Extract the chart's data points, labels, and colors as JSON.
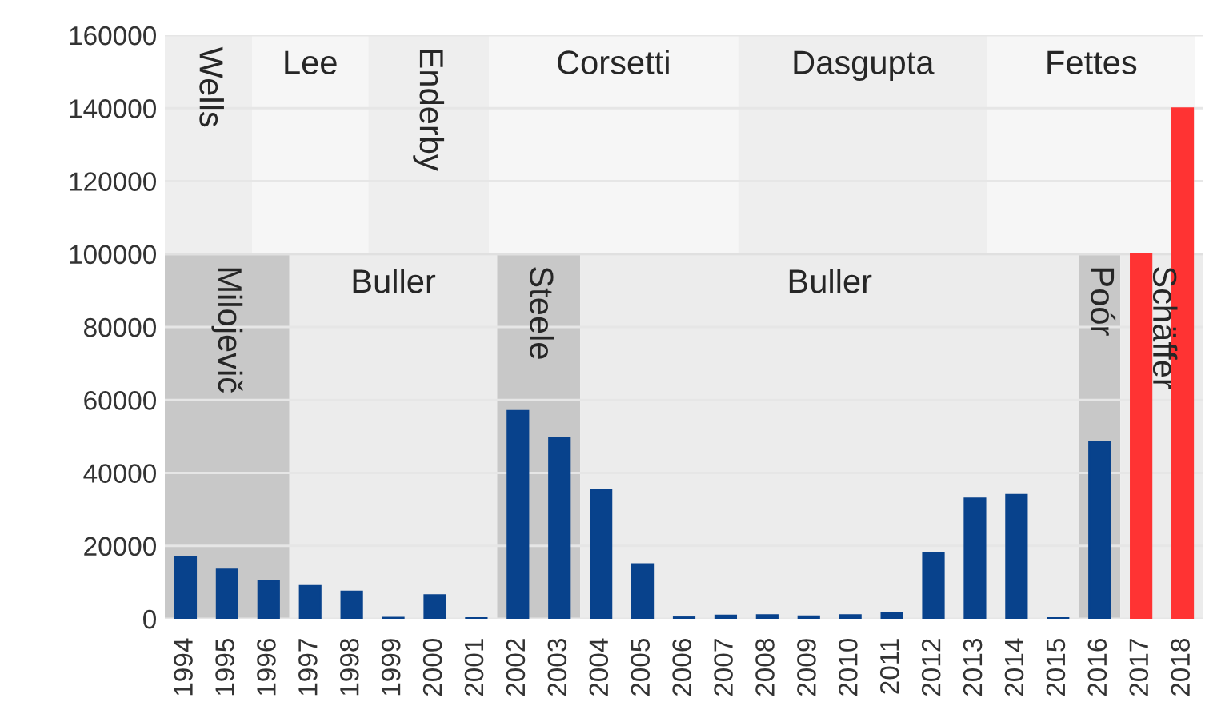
{
  "chart_data": {
    "type": "bar",
    "x": [
      1994,
      1995,
      1996,
      1997,
      1998,
      1999,
      2000,
      2001,
      2002,
      2003,
      2004,
      2005,
      2006,
      2007,
      2008,
      2009,
      2010,
      2011,
      2012,
      2013,
      2014,
      2015,
      2016,
      2017,
      2018
    ],
    "values": [
      17000,
      13500,
      10500,
      9000,
      7500,
      300,
      6500,
      200,
      57000,
      49500,
      35500,
      15000,
      400,
      900,
      1000,
      700,
      1000,
      1500,
      18000,
      33000,
      34000,
      200,
      48500,
      100000,
      140000
    ],
    "colors": [
      "#08428c",
      "#08428c",
      "#08428c",
      "#08428c",
      "#08428c",
      "#08428c",
      "#08428c",
      "#08428c",
      "#08428c",
      "#08428c",
      "#08428c",
      "#08428c",
      "#08428c",
      "#08428c",
      "#08428c",
      "#08428c",
      "#08428c",
      "#08428c",
      "#08428c",
      "#08428c",
      "#08428c",
      "#08428c",
      "#08428c",
      "#ff3333",
      "#ff3333"
    ],
    "xlim": [
      1993.5,
      2018.5
    ],
    "xticks": [
      1994,
      1995,
      1996,
      1997,
      1998,
      1999,
      2000,
      2001,
      2002,
      2003,
      2004,
      2005,
      2006,
      2007,
      2008,
      2009,
      2010,
      2011,
      2012,
      2013,
      2014,
      2015,
      2016,
      2017,
      2018
    ],
    "ylim": [
      0,
      160000
    ],
    "yticks": [
      0,
      20000,
      40000,
      60000,
      80000,
      100000,
      120000,
      140000,
      160000
    ],
    "grid": "y",
    "ref_lines": [
      {
        "axis": "y",
        "value": 100000,
        "color": "#e0e0e0"
      }
    ],
    "bands": [
      {
        "axis": "x",
        "from": 1993.5,
        "to": 1995.6,
        "label": "Wells",
        "color": "#eeeeee"
      },
      {
        "axis": "x",
        "from": 1995.6,
        "to": 1998.4,
        "label": "Lee",
        "color": "#f6f6f6"
      },
      {
        "axis": "x",
        "from": 1998.4,
        "to": 2001.3,
        "label": "Enderby",
        "color": "#eeeeee"
      },
      {
        "axis": "x",
        "from": 2001.3,
        "to": 2007.3,
        "label": "Corsetti",
        "color": "#f6f6f6"
      },
      {
        "axis": "x",
        "from": 2007.3,
        "to": 2013.3,
        "label": "Dasgupta",
        "color": "#eeeeee"
      },
      {
        "axis": "x",
        "from": 2013.3,
        "to": 2018.3,
        "label": "Fettes",
        "color": "#f6f6f6"
      },
      {
        "axis": "x",
        "from": 1993.5,
        "to": 1996.5,
        "label": "Milojevič",
        "color": "#c8c8c8"
      },
      {
        "axis": "x",
        "from": 1996.5,
        "to": 2001.5,
        "label": "Buller",
        "color": "#ececec"
      },
      {
        "axis": "x",
        "from": 2001.5,
        "to": 2003.5,
        "label": "Steele",
        "color": "#c8c8c8"
      },
      {
        "axis": "x",
        "from": 2003.5,
        "to": 2015.5,
        "label": "Buller",
        "color": "#ececec"
      },
      {
        "axis": "x",
        "from": 2015.5,
        "to": 2016.5,
        "label": "Poór",
        "color": "#c8c8c8"
      },
      {
        "axis": "x",
        "from": 2016.5,
        "to": 2018.5,
        "label": "Schäffer",
        "color": "#ececec"
      }
    ]
  }
}
